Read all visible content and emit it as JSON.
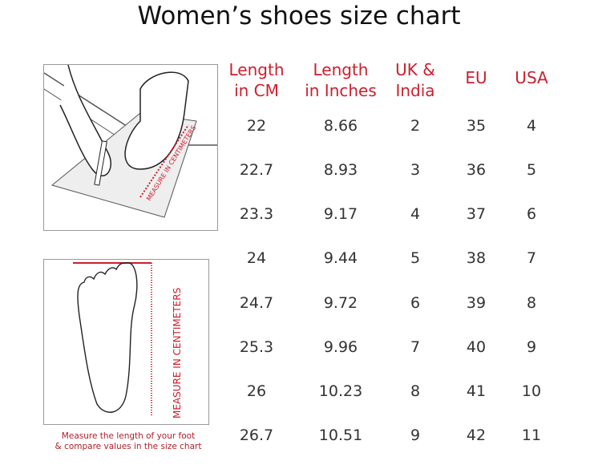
{
  "title": "Women’s shoes size chart",
  "table": {
    "headers": [
      [
        "Length",
        "in CM"
      ],
      [
        "Length",
        "in Inches"
      ],
      [
        "UK &",
        "India"
      ],
      [
        "EU"
      ],
      [
        "USA"
      ]
    ],
    "rows": [
      [
        "22",
        "8.66",
        "2",
        "35",
        "4"
      ],
      [
        "22.7",
        "8.93",
        "3",
        "36",
        "5"
      ],
      [
        "23.3",
        "9.17",
        "4",
        "37",
        "6"
      ],
      [
        "24",
        "9.44",
        "5",
        "38",
        "7"
      ],
      [
        "24.7",
        "9.72",
        "6",
        "39",
        "8"
      ],
      [
        "25.3",
        "9.96",
        "7",
        "40",
        "9"
      ],
      [
        "26",
        "10.23",
        "8",
        "41",
        "10"
      ],
      [
        "26.7",
        "10.51",
        "9",
        "42",
        "11"
      ]
    ]
  },
  "illustration_top": {
    "ruler_label": "MEASURE IN CENTIMETERS"
  },
  "illustration_bottom": {
    "ruler_label": "MEASURE IN CENTIMETERS"
  },
  "caption": [
    "Measure the length of your foot",
    "& compare values in the size chart"
  ],
  "colors": {
    "accent": "#cc1f2d",
    "text": "#333333"
  }
}
